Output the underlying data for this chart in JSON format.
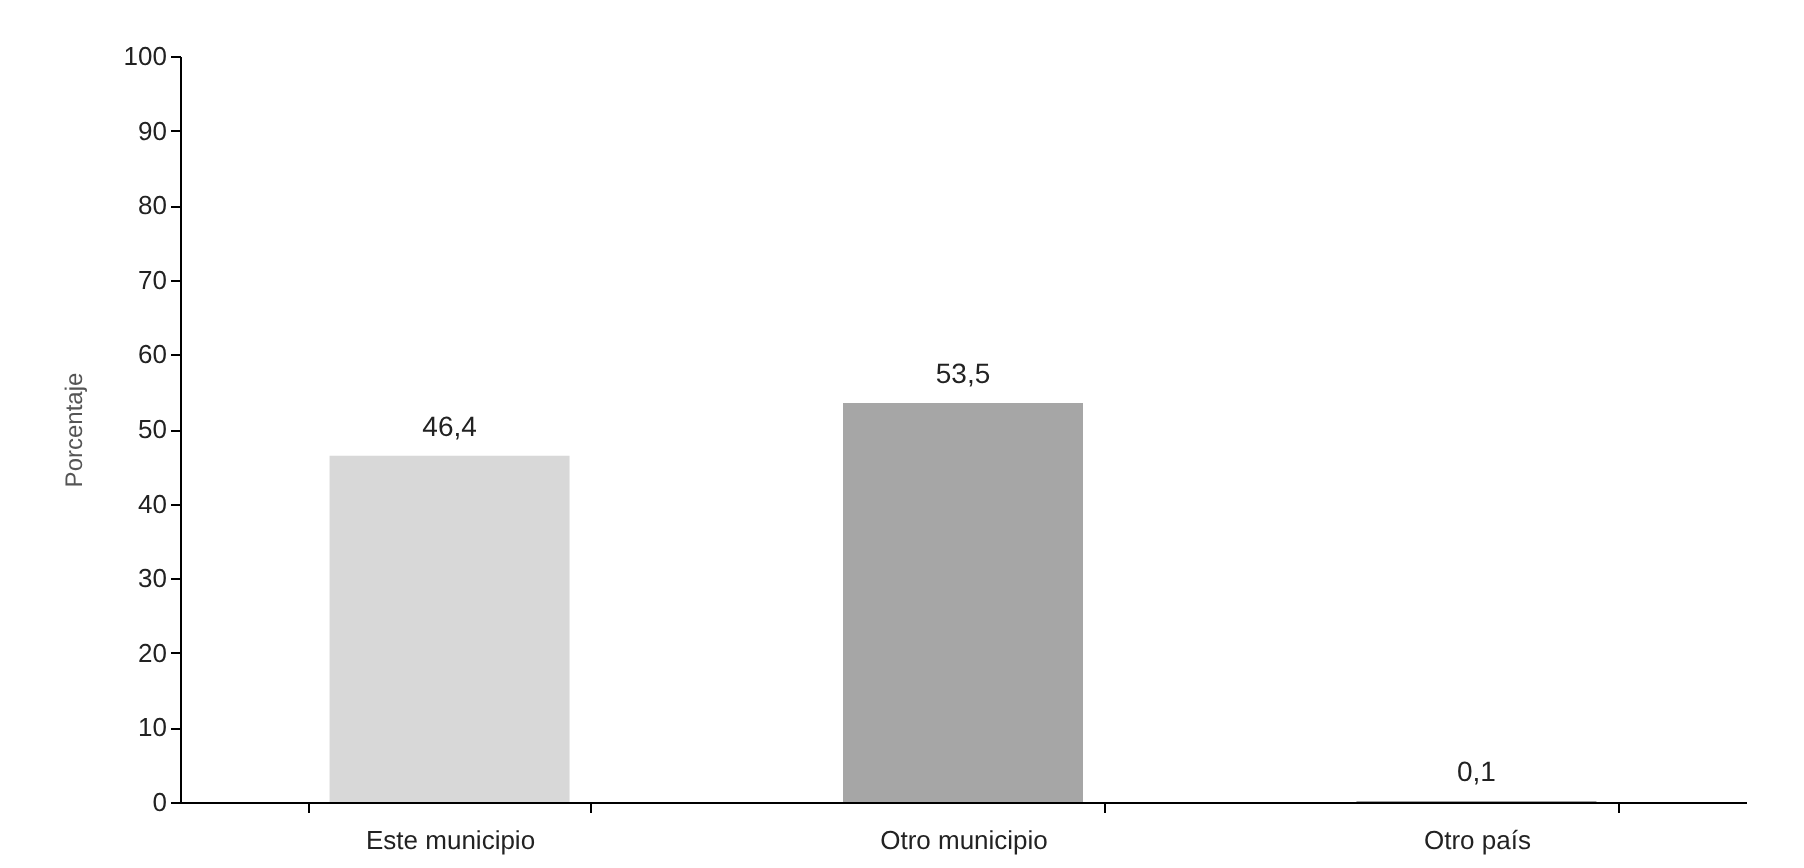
{
  "chart_data": {
    "type": "bar",
    "ylabel": "Porcentaje",
    "categories": [
      "Este municipio",
      "Otro  municipio",
      "Otro país"
    ],
    "values": [
      46.4,
      53.5,
      0.1
    ],
    "value_labels": [
      "46,4",
      "53,5",
      "0,1"
    ],
    "colors": [
      "#d8d8d8",
      "#a6a6a6",
      "#808080"
    ],
    "ylim": [
      0,
      100
    ],
    "yticks": [
      0,
      10,
      20,
      30,
      40,
      50,
      60,
      70,
      80,
      90,
      100
    ],
    "grid": false
  }
}
